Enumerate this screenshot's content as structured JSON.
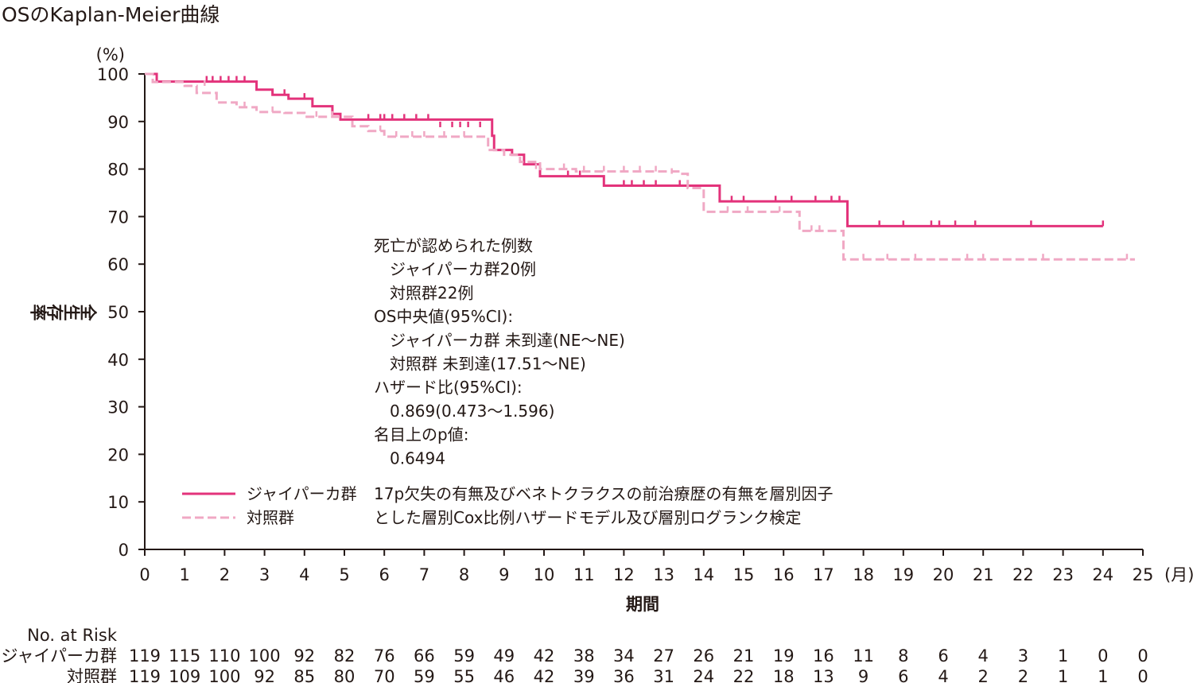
{
  "chart_data": {
    "type": "line",
    "title": "OSのKaplan-Meier曲線",
    "ylabel": "全生存率",
    "xlabel": "期間",
    "y_unit": "(%)",
    "x_unit": "(月)",
    "xlim": [
      0,
      25
    ],
    "ylim": [
      0,
      100
    ],
    "x_ticks": [
      0,
      1,
      2,
      3,
      4,
      5,
      6,
      7,
      8,
      9,
      10,
      11,
      12,
      13,
      14,
      15,
      16,
      17,
      18,
      19,
      20,
      21,
      22,
      23,
      24,
      25
    ],
    "y_ticks": [
      0,
      10,
      20,
      30,
      40,
      50,
      60,
      70,
      80,
      90,
      100
    ],
    "colors": {
      "treatment": "#e3337b",
      "control": "#f0a8c4",
      "axis": "#231815"
    },
    "series": [
      {
        "name": "ジャイパーカ群",
        "style": "solid",
        "steps": [
          [
            0,
            100
          ],
          [
            0.3,
            98.4
          ],
          [
            2.8,
            96.7
          ],
          [
            3.2,
            95.6
          ],
          [
            3.6,
            94.8
          ],
          [
            4.2,
            93.2
          ],
          [
            4.7,
            91.6
          ],
          [
            4.9,
            90.4
          ],
          [
            8.7,
            87.0
          ],
          [
            8.75,
            84.0
          ],
          [
            9.2,
            83.0
          ],
          [
            9.5,
            81.0
          ],
          [
            9.9,
            78.5
          ],
          [
            11.5,
            76.5
          ],
          [
            14.4,
            73.2
          ],
          [
            17.6,
            68.0
          ],
          [
            24.0,
            68.0
          ]
        ],
        "censored": [
          [
            1.55,
            98.4
          ],
          [
            1.7,
            98.4
          ],
          [
            1.9,
            98.4
          ],
          [
            2.1,
            98.4
          ],
          [
            2.3,
            98.4
          ],
          [
            2.5,
            98.4
          ],
          [
            3.2,
            95.6
          ],
          [
            3.5,
            95.6
          ],
          [
            4.0,
            94.8
          ],
          [
            5.6,
            90.4
          ],
          [
            5.9,
            90.4
          ],
          [
            6.0,
            90.4
          ],
          [
            6.2,
            90.4
          ],
          [
            6.5,
            90.4
          ],
          [
            6.8,
            90.4
          ],
          [
            7.1,
            90.4
          ],
          [
            7.4,
            88.8
          ],
          [
            7.7,
            88.8
          ],
          [
            7.9,
            88.8
          ],
          [
            8.1,
            88.8
          ],
          [
            8.4,
            88.8
          ],
          [
            10.6,
            78.5
          ],
          [
            10.9,
            78.5
          ],
          [
            12.0,
            76.5
          ],
          [
            12.2,
            76.5
          ],
          [
            12.5,
            76.5
          ],
          [
            12.8,
            76.5
          ],
          [
            13.4,
            76.5
          ],
          [
            14.7,
            73.2
          ],
          [
            15.0,
            73.2
          ],
          [
            15.8,
            73.2
          ],
          [
            16.2,
            73.2
          ],
          [
            16.8,
            73.2
          ],
          [
            17.2,
            73.2
          ],
          [
            17.4,
            73.2
          ],
          [
            18.4,
            68.0
          ],
          [
            19.0,
            68.0
          ],
          [
            19.7,
            68.0
          ],
          [
            19.9,
            68.0
          ],
          [
            20.3,
            68.0
          ],
          [
            20.8,
            68.0
          ],
          [
            22.2,
            68.0
          ],
          [
            24.0,
            68.0
          ]
        ]
      },
      {
        "name": "対照群",
        "style": "dashed",
        "steps": [
          [
            0,
            100
          ],
          [
            0.2,
            98.3
          ],
          [
            1.0,
            97.5
          ],
          [
            1.3,
            96.0
          ],
          [
            1.8,
            94.0
          ],
          [
            2.3,
            93.0
          ],
          [
            2.8,
            92.0
          ],
          [
            3.5,
            91.8
          ],
          [
            4.0,
            91.0
          ],
          [
            5.2,
            89.0
          ],
          [
            5.6,
            88.0
          ],
          [
            6.0,
            86.8
          ],
          [
            7.3,
            86.8
          ],
          [
            8.6,
            84.0
          ],
          [
            9.0,
            83.0
          ],
          [
            9.4,
            81.5
          ],
          [
            9.9,
            80.0
          ],
          [
            10.8,
            79.5
          ],
          [
            13.4,
            79.0
          ],
          [
            13.6,
            76.0
          ],
          [
            14.0,
            71.0
          ],
          [
            16.4,
            67.0
          ],
          [
            17.5,
            61.0
          ],
          [
            24.8,
            61.0
          ]
        ],
        "censored": [
          [
            1.5,
            97.5
          ],
          [
            2.5,
            93.0
          ],
          [
            3.2,
            92.0
          ],
          [
            4.3,
            91.0
          ],
          [
            4.7,
            91.0
          ],
          [
            5.9,
            88.0
          ],
          [
            6.3,
            86.8
          ],
          [
            6.7,
            86.8
          ],
          [
            7.0,
            86.8
          ],
          [
            7.5,
            86.8
          ],
          [
            8.0,
            86.8
          ],
          [
            9.8,
            80.0
          ],
          [
            10.5,
            80.0
          ],
          [
            11.0,
            79.5
          ],
          [
            11.5,
            79.5
          ],
          [
            12.0,
            79.5
          ],
          [
            12.4,
            79.5
          ],
          [
            12.8,
            79.5
          ],
          [
            13.2,
            79.0
          ],
          [
            14.6,
            71.0
          ],
          [
            15.1,
            71.0
          ],
          [
            15.9,
            71.0
          ],
          [
            16.7,
            67.0
          ],
          [
            16.9,
            67.0
          ],
          [
            18.0,
            61.0
          ],
          [
            18.6,
            61.0
          ],
          [
            19.3,
            61.0
          ],
          [
            20.6,
            61.0
          ],
          [
            21.0,
            61.0
          ],
          [
            22.5,
            61.0
          ],
          [
            24.6,
            61.0
          ]
        ]
      }
    ],
    "legend": {
      "placement": "lower-left",
      "items": [
        {
          "label": "ジャイパーカ群",
          "style": "solid"
        },
        {
          "label": "対照群",
          "style": "dashed"
        }
      ]
    },
    "annotation_lines": [
      "死亡が認められた例数",
      "　ジャイパーカ群20例",
      "　対照群22例",
      "OS中央値(95%CI):",
      "　ジャイパーカ群 未到達(NE〜NE)",
      "　対照群 未到達(17.51〜NE)",
      "ハザード比(95%CI):",
      "　0.869(0.473〜1.596)",
      "名目上のp値:",
      "　0.6494"
    ],
    "footnote_lines": [
      "17p欠失の有無及びベネトクラクスの前治療歴の有無を層別因子",
      "とした層別Cox比例ハザードモデル及び層別ログランク検定"
    ],
    "risk_table": {
      "header": "No. at Risk",
      "rows": [
        {
          "label": "ジャイパーカ群",
          "values": [
            119,
            115,
            110,
            100,
            92,
            82,
            76,
            66,
            59,
            49,
            42,
            38,
            34,
            27,
            26,
            21,
            19,
            16,
            11,
            8,
            6,
            4,
            3,
            1,
            0,
            0
          ]
        },
        {
          "label": "対照群",
          "values": [
            119,
            109,
            100,
            92,
            85,
            80,
            70,
            59,
            55,
            46,
            42,
            39,
            36,
            31,
            24,
            22,
            18,
            13,
            9,
            6,
            4,
            2,
            2,
            1,
            1,
            0
          ]
        }
      ]
    }
  }
}
